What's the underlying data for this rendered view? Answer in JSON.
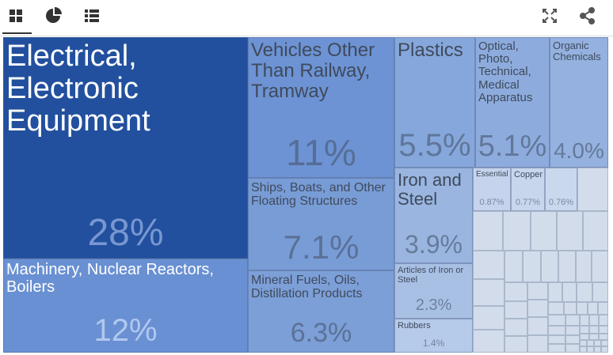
{
  "chart_data": {
    "type": "treemap",
    "categories": [
      "Electrical, Electronic Equipment",
      "Machinery, Nuclear Reactors, Boilers",
      "Vehicles Other Than Railway, Tramway",
      "Ships, Boats, and Other Floating Structures",
      "Mineral Fuels, Oils, Distillation Products",
      "Plastics",
      "Optical, Photo, Technical, Medical Apparatus",
      "Organic Chemicals",
      "Iron and Steel",
      "Articles of Iron or Steel",
      "Rubbers",
      "Essential Oils,...",
      "Copper",
      null
    ],
    "values": [
      28,
      12,
      11,
      7.1,
      6.3,
      5.5,
      5.1,
      4.0,
      3.9,
      2.3,
      1.4,
      0.87,
      0.77,
      0.76
    ],
    "value_labels": [
      "28%",
      "12%",
      "11%",
      "7.1%",
      "6.3%",
      "5.5%",
      "5.1%",
      "4.0%",
      "3.9%",
      "2.3%",
      "1.4%",
      "0.87%",
      "0.77%",
      "0.76%"
    ],
    "colors": [
      "#22509e",
      "#6990d2",
      "#6d93d4",
      "#789cd6",
      "#7c9fd7",
      "#86a7db",
      "#8dacdd",
      "#94b1df",
      "#99b5e0",
      "#a9c0e5",
      "#b6cae9",
      "#c5d4ec",
      "#c8d6ed",
      "#cad8ed"
    ]
  }
}
